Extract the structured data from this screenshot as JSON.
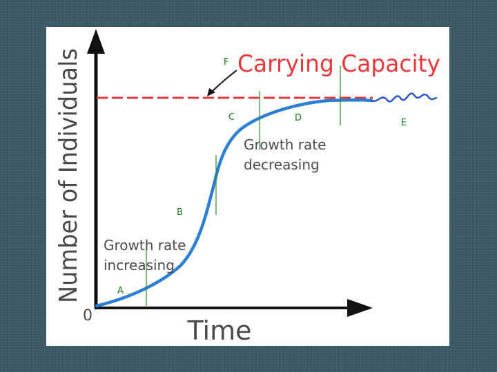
{
  "figure": {
    "y_axis_label": "Number of Individuals",
    "x_axis_label": "Time",
    "origin_label": "0",
    "carrying_capacity_label": "Carrying Capacity",
    "growth_increasing_lines": [
      "Growth rate",
      "increasing"
    ],
    "growth_decreasing_lines": [
      "Growth rate",
      "decreasing"
    ],
    "markers": {
      "a": "A",
      "b": "B",
      "c": "C",
      "d": "D",
      "e": "E",
      "f": "F"
    }
  },
  "colors": {
    "background": "#3e5a68",
    "curve": "#2a7fd4",
    "capacity_line": "#e8383b",
    "marker_text": "#1a7a1a",
    "axis": "#111111",
    "label_gray": "#4a4a4a"
  }
}
